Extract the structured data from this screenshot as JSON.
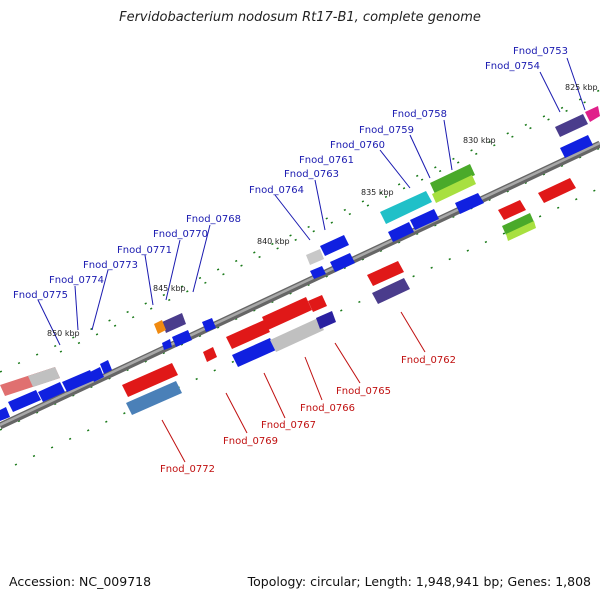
{
  "title": "Fervidobacterium nodosum Rt17-B1, complete genome",
  "footer": {
    "accession": "Accession: NC_009718",
    "summary": "Topology: circular; Length: 1,948,941 bp; Genes: 1,808"
  },
  "colors": {
    "top_label": "#1a1ab0",
    "bottom_label": "#c01010",
    "backbone": "#808080",
    "tick": "#1a7a1a"
  },
  "ticks": [
    {
      "text": "825 kbp"
    },
    {
      "text": "830 kbp"
    },
    {
      "text": "835 kbp"
    },
    {
      "text": "840 kbp"
    },
    {
      "text": "845 kbp"
    },
    {
      "text": "850 kbp"
    }
  ],
  "top_labels": [
    {
      "text": "Fnod_0753"
    },
    {
      "text": "Fnod_0754"
    },
    {
      "text": "Fnod_0758"
    },
    {
      "text": "Fnod_0759"
    },
    {
      "text": "Fnod_0760"
    },
    {
      "text": "Fnod_0761"
    },
    {
      "text": "Fnod_0763"
    },
    {
      "text": "Fnod_0764"
    },
    {
      "text": "Fnod_0768"
    },
    {
      "text": "Fnod_0770"
    },
    {
      "text": "Fnod_0771"
    },
    {
      "text": "Fnod_0773"
    },
    {
      "text": "Fnod_0774"
    },
    {
      "text": "Fnod_0775"
    }
  ],
  "bottom_labels": [
    {
      "text": "Fnod_0762"
    },
    {
      "text": "Fnod_0765"
    },
    {
      "text": "Fnod_0766"
    },
    {
      "text": "Fnod_0767"
    },
    {
      "text": "Fnod_0769"
    },
    {
      "text": "Fnod_0772"
    }
  ]
}
